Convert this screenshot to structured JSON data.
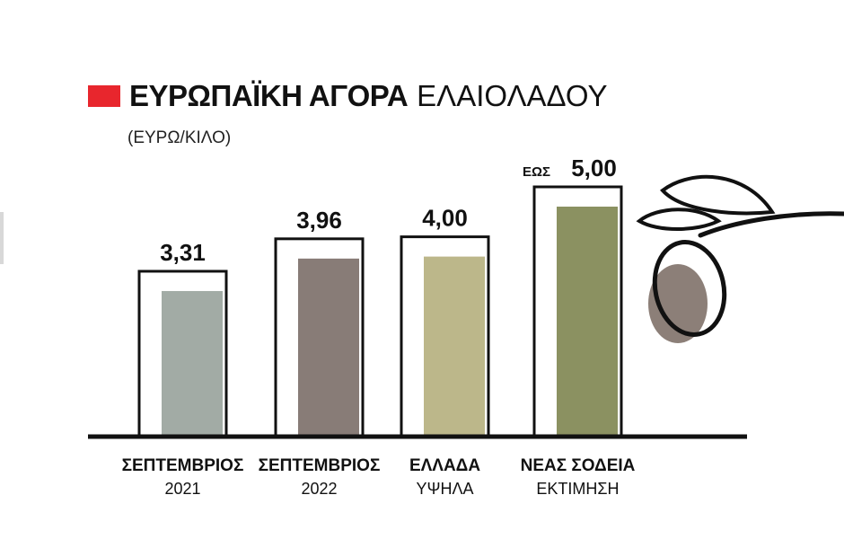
{
  "header": {
    "title_bold": "ΕΥΡΩΠΑΪΚΗ ΑΓΟΡΑ",
    "title_light": "ΕΛΑΙΟΛΑΔΟΥ",
    "unit": "(ΕΥΡΩ/ΚΙΛΟ)",
    "accent_color": "#e8262d"
  },
  "chart_data": {
    "type": "bar",
    "title": "ΕΥΡΩΠΑΪΚΗ ΑΓΟΡΑ ΕΛΑΙΟΛΑΔΟΥ",
    "subtitle": "(ΕΥΡΩ/ΚΙΛΟ)",
    "ylim": [
      0,
      5
    ],
    "grid": false,
    "bars": [
      {
        "label_line1": "ΣΕΠΤΕΜΒΡΙΟΣ",
        "label_line2": "2021",
        "value": 3.31,
        "value_label": "3,31",
        "prefix": "",
        "color": "#a2aba5"
      },
      {
        "label_line1": "ΣΕΠΤΕΜΒΡΙΟΣ",
        "label_line2": "2022",
        "value": 3.96,
        "value_label": "3,96",
        "prefix": "",
        "color": "#887c77"
      },
      {
        "label_line1": "ΕΛΛΑΔΑ",
        "label_line2": "ΥΨΗΛΑ",
        "value": 4.0,
        "value_label": "4,00",
        "prefix": "",
        "color": "#bcb78a"
      },
      {
        "label_line1": "ΝΕΑΣ ΣΟΔΕΙΑ",
        "label_line2": "ΕΚΤΙΜΗΣΗ",
        "value": 5.0,
        "value_label": "5,00",
        "prefix": "ΕΩΣ",
        "color": "#8b9161"
      }
    ]
  },
  "decoration": {
    "icon": "olive-branch-icon",
    "olive_color": "#8c7f78"
  }
}
